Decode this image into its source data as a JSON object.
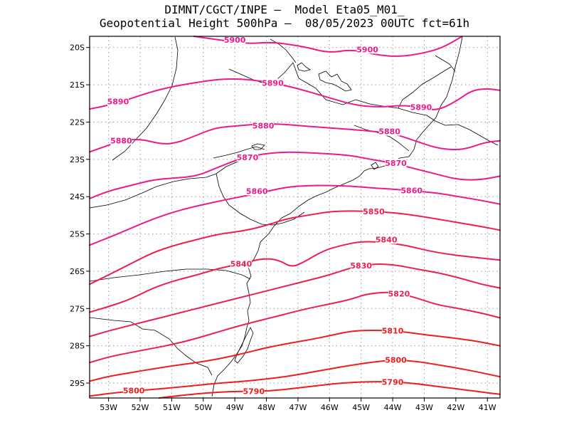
{
  "title": {
    "line1": "DIMNT/CGCT/INPE –  Model Eta05_M01_",
    "line2": "Geopotential Height 500hPa –  08/05/2023 00UTC fct=61h"
  },
  "chart_data": {
    "type": "contour",
    "variable": "Geopotential Height 500hPa",
    "x_range": [
      -53.6,
      -40.6
    ],
    "y_range": [
      -29.4,
      -19.7
    ],
    "x_ticks": [
      "53W",
      "52W",
      "51W",
      "50W",
      "49W",
      "48W",
      "47W",
      "46W",
      "45W",
      "44W",
      "43W",
      "42W",
      "41W"
    ],
    "y_ticks": [
      "20S",
      "21S",
      "22S",
      "23S",
      "24S",
      "25S",
      "26S",
      "27S",
      "28S",
      "29S"
    ],
    "grid": "dotted",
    "contours": [
      {
        "level": 5900,
        "color": "#ee1a8c",
        "points": [
          [
            -50.3,
            -19.7
          ],
          [
            -49.3,
            -19.82
          ],
          [
            -48.6,
            -19.9
          ],
          [
            -47.8,
            -19.85
          ],
          [
            -46.8,
            -19.98
          ],
          [
            -46.0,
            -20.15
          ],
          [
            -45.3,
            -20.05
          ],
          [
            -44.5,
            -20.2
          ],
          [
            -43.8,
            -20.25
          ],
          [
            -43.0,
            -20.15
          ],
          [
            -42.4,
            -20.0
          ],
          [
            -41.8,
            -19.7
          ]
        ],
        "labels": [
          [
            -49.0,
            -19.8
          ],
          [
            -44.8,
            -20.05
          ]
        ]
      },
      {
        "level": 5890,
        "color": "#ee1a8c",
        "points": [
          [
            -53.6,
            -21.65
          ],
          [
            -53.0,
            -21.55
          ],
          [
            -52.4,
            -21.4
          ],
          [
            -51.7,
            -21.2
          ],
          [
            -51.0,
            -21.05
          ],
          [
            -50.3,
            -20.95
          ],
          [
            -49.5,
            -20.85
          ],
          [
            -48.8,
            -20.84
          ],
          [
            -48.2,
            -20.9
          ],
          [
            -47.5,
            -21.0
          ],
          [
            -46.8,
            -21.15
          ],
          [
            -46.0,
            -21.35
          ],
          [
            -45.2,
            -21.55
          ],
          [
            -44.4,
            -21.6
          ],
          [
            -43.7,
            -21.55
          ],
          [
            -43.1,
            -21.6
          ],
          [
            -42.6,
            -21.7
          ],
          [
            -42.0,
            -21.45
          ],
          [
            -41.5,
            -21.15
          ],
          [
            -41.0,
            -21.1
          ],
          [
            -40.6,
            -21.15
          ]
        ],
        "labels": [
          [
            -52.7,
            -21.45
          ],
          [
            -47.8,
            -20.95
          ],
          [
            -43.1,
            -21.6
          ]
        ]
      },
      {
        "level": 5880,
        "color": "#ee1a8c",
        "points": [
          [
            -53.6,
            -22.8
          ],
          [
            -53.1,
            -22.65
          ],
          [
            -52.6,
            -22.5
          ],
          [
            -52.0,
            -22.45
          ],
          [
            -51.3,
            -22.6
          ],
          [
            -50.8,
            -22.55
          ],
          [
            -50.2,
            -22.35
          ],
          [
            -49.6,
            -22.15
          ],
          [
            -48.9,
            -22.1
          ],
          [
            -48.2,
            -22.05
          ],
          [
            -47.6,
            -22.05
          ],
          [
            -46.9,
            -22.1
          ],
          [
            -46.1,
            -22.15
          ],
          [
            -45.3,
            -22.2
          ],
          [
            -44.6,
            -22.25
          ],
          [
            -44.0,
            -22.3
          ],
          [
            -43.3,
            -22.5
          ],
          [
            -42.6,
            -22.7
          ],
          [
            -42.0,
            -22.75
          ],
          [
            -41.6,
            -22.7
          ],
          [
            -41.1,
            -22.55
          ],
          [
            -40.6,
            -22.5
          ]
        ],
        "labels": [
          [
            -52.6,
            -22.5
          ],
          [
            -48.1,
            -22.1
          ],
          [
            -44.1,
            -22.25
          ]
        ]
      },
      {
        "level": 5870,
        "color": "#ee1a8c",
        "points": [
          [
            -53.6,
            -24.05
          ],
          [
            -53.0,
            -23.85
          ],
          [
            -52.3,
            -23.7
          ],
          [
            -51.6,
            -23.55
          ],
          [
            -50.9,
            -23.5
          ],
          [
            -50.2,
            -23.45
          ],
          [
            -49.5,
            -23.2
          ],
          [
            -48.8,
            -22.97
          ],
          [
            -48.1,
            -22.85
          ],
          [
            -47.4,
            -22.8
          ],
          [
            -46.7,
            -22.82
          ],
          [
            -46.0,
            -22.85
          ],
          [
            -45.3,
            -22.9
          ],
          [
            -44.7,
            -23.0
          ],
          [
            -44.0,
            -23.1
          ],
          [
            -43.3,
            -23.25
          ],
          [
            -42.6,
            -23.4
          ],
          [
            -41.9,
            -23.55
          ],
          [
            -41.2,
            -23.55
          ],
          [
            -40.6,
            -23.45
          ]
        ],
        "labels": [
          [
            -48.6,
            -22.95
          ],
          [
            -43.9,
            -23.1
          ]
        ]
      },
      {
        "level": 5860,
        "color": "#ee1a8c",
        "points": [
          [
            -53.6,
            -25.3
          ],
          [
            -53.0,
            -25.1
          ],
          [
            -52.3,
            -24.85
          ],
          [
            -51.6,
            -24.6
          ],
          [
            -50.9,
            -24.4
          ],
          [
            -50.2,
            -24.25
          ],
          [
            -49.5,
            -24.12
          ],
          [
            -48.8,
            -24.0
          ],
          [
            -48.1,
            -23.88
          ],
          [
            -47.4,
            -23.75
          ],
          [
            -46.7,
            -23.7
          ],
          [
            -46.0,
            -23.7
          ],
          [
            -45.3,
            -23.72
          ],
          [
            -44.6,
            -23.77
          ],
          [
            -44.0,
            -23.8
          ],
          [
            -43.3,
            -23.85
          ],
          [
            -42.6,
            -23.9
          ],
          [
            -41.9,
            -24.0
          ],
          [
            -41.2,
            -24.1
          ],
          [
            -40.6,
            -24.2
          ]
        ],
        "labels": [
          [
            -48.3,
            -23.85
          ],
          [
            -43.4,
            -23.83
          ]
        ]
      },
      {
        "level": 5850,
        "color": "#f01d52",
        "points": [
          [
            -53.6,
            -26.35
          ],
          [
            -53.0,
            -26.1
          ],
          [
            -52.3,
            -25.8
          ],
          [
            -51.6,
            -25.5
          ],
          [
            -50.9,
            -25.3
          ],
          [
            -50.2,
            -25.15
          ],
          [
            -49.5,
            -25.0
          ],
          [
            -48.8,
            -24.93
          ],
          [
            -48.1,
            -24.8
          ],
          [
            -47.4,
            -24.6
          ],
          [
            -46.7,
            -24.5
          ],
          [
            -46.0,
            -24.4
          ],
          [
            -45.3,
            -24.38
          ],
          [
            -44.6,
            -24.4
          ],
          [
            -44.0,
            -24.43
          ],
          [
            -43.3,
            -24.5
          ],
          [
            -42.6,
            -24.6
          ],
          [
            -41.9,
            -24.7
          ],
          [
            -41.2,
            -24.8
          ],
          [
            -40.6,
            -24.9
          ]
        ],
        "labels": [
          [
            -44.6,
            -24.4
          ]
        ]
      },
      {
        "level": 5840,
        "color": "#f01d52",
        "points": [
          [
            -53.6,
            -27.1
          ],
          [
            -53.0,
            -26.95
          ],
          [
            -52.3,
            -26.75
          ],
          [
            -51.6,
            -26.45
          ],
          [
            -50.9,
            -26.25
          ],
          [
            -50.2,
            -26.1
          ],
          [
            -49.5,
            -25.92
          ],
          [
            -48.8,
            -25.8
          ],
          [
            -48.1,
            -25.65
          ],
          [
            -47.6,
            -25.7
          ],
          [
            -47.2,
            -25.9
          ],
          [
            -46.8,
            -25.75
          ],
          [
            -46.2,
            -25.45
          ],
          [
            -45.6,
            -25.3
          ],
          [
            -45.0,
            -25.2
          ],
          [
            -44.3,
            -25.22
          ],
          [
            -43.6,
            -25.3
          ],
          [
            -42.9,
            -25.45
          ],
          [
            -42.2,
            -25.55
          ],
          [
            -41.5,
            -25.62
          ],
          [
            -40.6,
            -25.7
          ]
        ],
        "labels": [
          [
            -48.8,
            -25.8
          ],
          [
            -44.2,
            -25.15
          ]
        ]
      },
      {
        "level": 5830,
        "color": "#f01d52",
        "points": [
          [
            -53.6,
            -27.75
          ],
          [
            -53.0,
            -27.6
          ],
          [
            -52.3,
            -27.45
          ],
          [
            -51.6,
            -27.3
          ],
          [
            -50.9,
            -27.15
          ],
          [
            -50.2,
            -27.0
          ],
          [
            -49.5,
            -26.85
          ],
          [
            -48.8,
            -26.7
          ],
          [
            -48.1,
            -26.55
          ],
          [
            -47.4,
            -26.4
          ],
          [
            -46.7,
            -26.25
          ],
          [
            -46.0,
            -26.1
          ],
          [
            -45.3,
            -25.9
          ],
          [
            -44.6,
            -25.8
          ],
          [
            -43.9,
            -25.83
          ],
          [
            -43.2,
            -25.95
          ],
          [
            -42.5,
            -26.05
          ],
          [
            -41.8,
            -26.2
          ],
          [
            -41.2,
            -26.35
          ],
          [
            -40.6,
            -26.45
          ]
        ],
        "labels": [
          [
            -45.0,
            -25.85
          ]
        ]
      },
      {
        "level": 5820,
        "color": "#f01d52",
        "points": [
          [
            -53.6,
            -28.45
          ],
          [
            -53.0,
            -28.3
          ],
          [
            -52.3,
            -28.18
          ],
          [
            -51.6,
            -28.07
          ],
          [
            -50.9,
            -27.95
          ],
          [
            -50.2,
            -27.8
          ],
          [
            -49.5,
            -27.62
          ],
          [
            -48.8,
            -27.45
          ],
          [
            -48.1,
            -27.3
          ],
          [
            -47.4,
            -27.15
          ],
          [
            -46.7,
            -27.0
          ],
          [
            -46.0,
            -26.88
          ],
          [
            -45.3,
            -26.75
          ],
          [
            -44.8,
            -26.6
          ],
          [
            -44.0,
            -26.55
          ],
          [
            -43.3,
            -26.7
          ],
          [
            -42.6,
            -26.9
          ],
          [
            -41.9,
            -27.0
          ],
          [
            -41.2,
            -27.12
          ],
          [
            -40.6,
            -27.25
          ]
        ],
        "labels": [
          [
            -43.8,
            -26.6
          ]
        ]
      },
      {
        "level": 5810,
        "color": "#f01d1d",
        "points": [
          [
            -53.6,
            -28.95
          ],
          [
            -53.0,
            -28.82
          ],
          [
            -52.3,
            -28.72
          ],
          [
            -51.6,
            -28.62
          ],
          [
            -50.9,
            -28.53
          ],
          [
            -50.2,
            -28.45
          ],
          [
            -49.5,
            -28.35
          ],
          [
            -48.8,
            -28.22
          ],
          [
            -48.1,
            -28.07
          ],
          [
            -47.4,
            -27.95
          ],
          [
            -46.7,
            -27.85
          ],
          [
            -46.0,
            -27.73
          ],
          [
            -45.3,
            -27.6
          ],
          [
            -44.6,
            -27.58
          ],
          [
            -43.9,
            -27.6
          ],
          [
            -43.2,
            -27.68
          ],
          [
            -42.5,
            -27.75
          ],
          [
            -41.8,
            -27.82
          ],
          [
            -41.2,
            -27.9
          ],
          [
            -40.6,
            -28.0
          ]
        ],
        "labels": [
          [
            -44.0,
            -27.6
          ]
        ]
      },
      {
        "level": 5800,
        "color": "#f01d1d",
        "points": [
          [
            -53.6,
            -29.35
          ],
          [
            -53.0,
            -29.28
          ],
          [
            -52.3,
            -29.22
          ],
          [
            -51.6,
            -29.17
          ],
          [
            -50.9,
            -29.12
          ],
          [
            -50.2,
            -29.06
          ],
          [
            -49.5,
            -29.0
          ],
          [
            -48.8,
            -28.96
          ],
          [
            -48.1,
            -28.9
          ],
          [
            -47.4,
            -28.83
          ],
          [
            -46.7,
            -28.73
          ],
          [
            -46.0,
            -28.62
          ],
          [
            -45.3,
            -28.52
          ],
          [
            -44.6,
            -28.43
          ],
          [
            -43.9,
            -28.38
          ],
          [
            -43.2,
            -28.42
          ],
          [
            -42.5,
            -28.52
          ],
          [
            -41.8,
            -28.62
          ],
          [
            -41.2,
            -28.72
          ],
          [
            -40.6,
            -28.83
          ]
        ],
        "labels": [
          [
            -52.2,
            -29.2
          ],
          [
            -43.9,
            -28.38
          ]
        ]
      },
      {
        "level": 5790,
        "color": "#f01d1d",
        "points": [
          [
            -51.4,
            -29.4
          ],
          [
            -50.8,
            -29.34
          ],
          [
            -50.2,
            -29.29
          ],
          [
            -49.5,
            -29.24
          ],
          [
            -48.8,
            -29.22
          ],
          [
            -48.1,
            -29.22
          ],
          [
            -47.4,
            -29.17
          ],
          [
            -46.7,
            -29.1
          ],
          [
            -46.0,
            -29.03
          ],
          [
            -45.3,
            -28.98
          ],
          [
            -44.6,
            -28.96
          ],
          [
            -43.9,
            -28.97
          ],
          [
            -43.2,
            -29.02
          ],
          [
            -42.5,
            -29.1
          ],
          [
            -41.8,
            -29.17
          ],
          [
            -41.2,
            -29.24
          ],
          [
            -40.6,
            -29.3
          ]
        ],
        "labels": [
          [
            -48.4,
            -29.22
          ],
          [
            -44.0,
            -28.97
          ]
        ]
      }
    ]
  }
}
